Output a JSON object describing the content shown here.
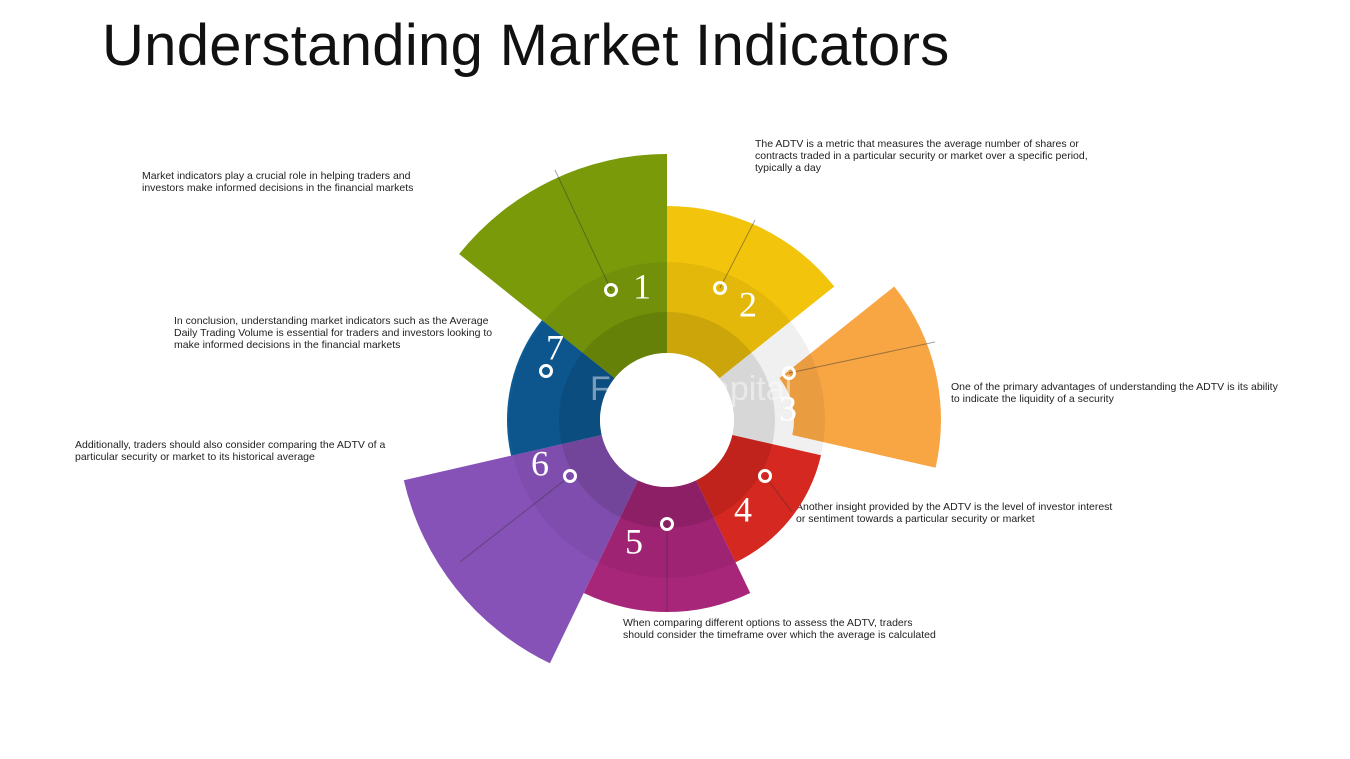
{
  "title": "Understanding Market Indicators",
  "watermark": "FasterCapital",
  "segments": [
    {
      "number": "1",
      "color": "#7a9a0a",
      "text": "Market indicators play a crucial role in helping traders and investors make informed decisions in the financial markets"
    },
    {
      "number": "2",
      "color": "#f2c40c",
      "text": "The ADTV is a metric that measures the average number of shares or contracts traded in a particular security or market over a specific period, typically a day"
    },
    {
      "number": "3",
      "color": "#f79c30",
      "text": "One of the primary advantages of understanding the ADTV is its ability to indicate the liquidity of a security"
    },
    {
      "number": "4",
      "color": "#e32b22",
      "text": "Another insight provided by the ADTV is the level of investor interest or sentiment towards a particular security or market"
    },
    {
      "number": "5",
      "color": "#a8267a",
      "text": "When comparing different options to assess the ADTV, traders should consider the timeframe over which the average is calculated"
    },
    {
      "number": "6",
      "color": "#8752b8",
      "text": "Additionally, traders should also consider comparing the ADTV of a particular security or market to its historical average"
    },
    {
      "number": "7",
      "color": "#0d5c96",
      "text": "In conclusion, understanding market indicators such as the Average Daily Trading Volume is essential for traders and investors looking to make informed decisions in the financial markets"
    }
  ]
}
